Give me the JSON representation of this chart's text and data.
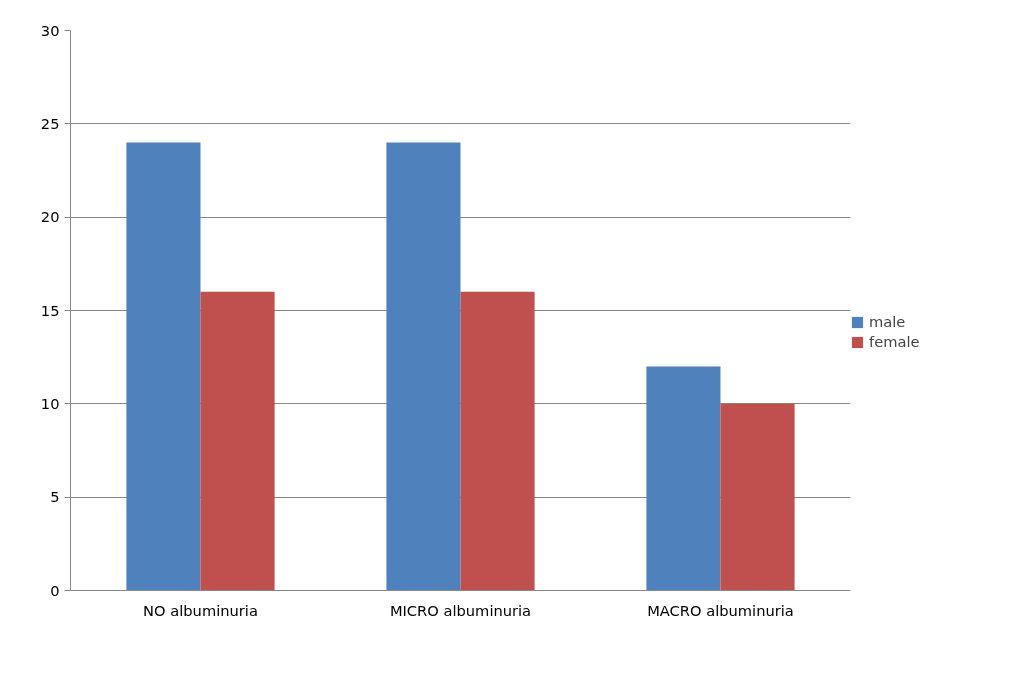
{
  "chart_data": {
    "type": "bar",
    "categories": [
      "NO albuminuria",
      "MICRO albuminuria",
      "MACRO albuminuria"
    ],
    "series": [
      {
        "name": "male",
        "color": "#4f81bd",
        "values": [
          24,
          24,
          12
        ]
      },
      {
        "name": "female",
        "color": "#c0504d",
        "values": [
          16,
          16,
          10
        ]
      }
    ],
    "ylim": [
      0,
      30
    ],
    "yticks": [
      0,
      5,
      10,
      15,
      20,
      25,
      30
    ],
    "grid": "y",
    "legend": "right"
  }
}
